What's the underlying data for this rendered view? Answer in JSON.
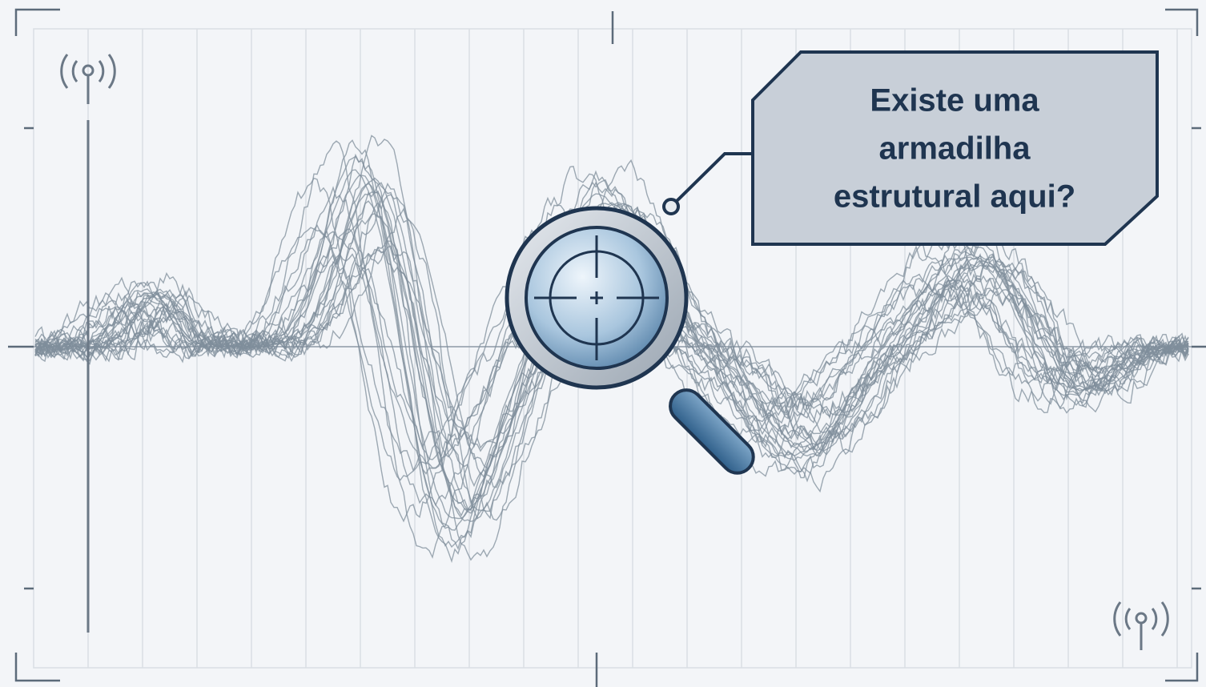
{
  "callout": {
    "lines": [
      "Existe uma",
      "armadilha",
      "estrutural aqui?"
    ]
  }
}
